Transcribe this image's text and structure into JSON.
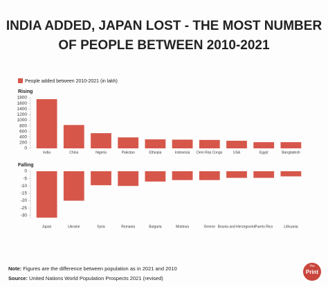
{
  "title": [
    "INDIA ADDED, JAPAN LOST - THE MOST NUMBER",
    "OF PEOPLE BETWEEN 2010-2021"
  ],
  "chart_data": [
    {
      "type": "bar",
      "label": "Rising",
      "categories": [
        "India",
        "China",
        "Nigeria",
        "Pakistan",
        "Ethiopia",
        "Indonesia",
        "Dem Rep Congo",
        "USA",
        "Egypt",
        "Bangladesh"
      ],
      "series": [
        {
          "name": "People added between 2010-2021 (in lakh)",
          "color": "#d6574a",
          "values": [
            1750,
            830,
            540,
            390,
            320,
            310,
            300,
            270,
            220,
            220
          ]
        }
      ],
      "ylim": [
        0,
        1800
      ],
      "yticks": [
        0,
        200,
        400,
        600,
        800,
        1000,
        1200,
        1400,
        1600,
        1800
      ]
    },
    {
      "type": "bar",
      "label": "Falling",
      "categories": [
        "Japan",
        "Ukraine",
        "Syria",
        "Romania",
        "Bulgaria",
        "Moldova",
        "Greece",
        "Bosnia and Herzegovina",
        "Puerto Rico",
        "Lithuania"
      ],
      "series": [
        {
          "color": "#d6574a",
          "values": [
            -31.5,
            -20,
            -9.5,
            -10,
            -7,
            -6,
            -6,
            -4.5,
            -4.5,
            -3.5
          ]
        }
      ],
      "ylim": [
        -32,
        0
      ],
      "yticks": [
        0,
        -5,
        -10,
        -15,
        -20,
        -25,
        -30
      ]
    }
  ],
  "note": {
    "label": "Note:",
    "text": "Figures are the difference between population as in 2021 and 2010"
  },
  "source": {
    "label": "Source:",
    "text": "United Nations World Population Prospects 2021 (revised)"
  },
  "logo": {
    "top": "The",
    "main": "Print"
  }
}
